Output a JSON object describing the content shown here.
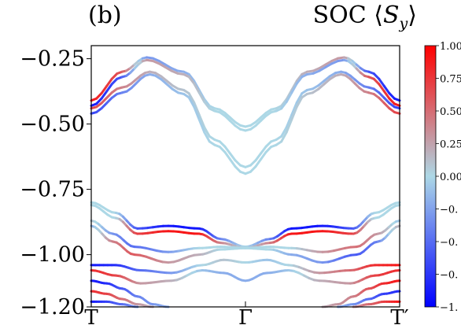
{
  "panel_label": "(b)",
  "title": {
    "prefix": "SOC",
    "open": "⟨",
    "symbol": "S",
    "sub": "y",
    "close": "⟩"
  },
  "colors": {
    "negative": "#0000ff",
    "zero": "#add8e6",
    "positive": "#ff0000"
  },
  "chart_data": {
    "type": "line",
    "title": "SOC ⟨Sy⟩",
    "xlabel": "",
    "ylabel": "",
    "x_ticks": [
      {
        "label": "T",
        "pos": 0.0
      },
      {
        "label": "Γ",
        "pos": 0.5
      },
      {
        "label": "T′",
        "pos": 1.0
      }
    ],
    "xlim": [
      0,
      1
    ],
    "ylim": [
      -1.2,
      -0.2
    ],
    "y_ticks": [
      -0.25,
      -0.5,
      -0.75,
      -1.0,
      -1.2
    ],
    "y_tick_labels": [
      "−0.25",
      "−0.50",
      "−0.75",
      "−1.00",
      "−1.20"
    ],
    "grid": false,
    "colorbar": {
      "cmap": "bwr (blue-lightblue-red)",
      "range": [
        -1.0,
        1.0
      ],
      "ticks": [
        1.0,
        0.75,
        0.5,
        0.25,
        0.0,
        -0.25,
        -0.5,
        -0.75,
        -1.0
      ],
      "tick_labels": [
        "1.00",
        "0.75",
        "0.50",
        "0.25",
        "0.00",
        "−0.",
        "−0.",
        "−0.",
        "−1."
      ]
    },
    "series": [
      {
        "x": [
          0,
          0.1,
          0.18,
          0.3,
          0.4,
          0.5,
          0.6,
          0.7,
          0.82,
          0.9,
          1.0
        ],
        "y": [
          -0.41,
          -0.3,
          -0.245,
          -0.3,
          -0.44,
          -0.51,
          -0.44,
          -0.3,
          -0.245,
          -0.3,
          -0.41
        ],
        "spin": [
          0.9,
          0.6,
          -0.3,
          -0.2,
          0.0,
          0.0,
          0.0,
          0.2,
          0.3,
          -0.6,
          -0.9
        ]
      },
      {
        "x": [
          0,
          0.1,
          0.18,
          0.3,
          0.4,
          0.5,
          0.6,
          0.7,
          0.82,
          0.9,
          1.0
        ],
        "y": [
          -0.43,
          -0.32,
          -0.255,
          -0.31,
          -0.45,
          -0.525,
          -0.45,
          -0.31,
          -0.255,
          -0.32,
          -0.43
        ],
        "spin": [
          -0.9,
          -0.6,
          0.3,
          0.2,
          0.0,
          0.0,
          0.0,
          -0.2,
          -0.3,
          0.6,
          0.9
        ]
      },
      {
        "x": [
          0,
          0.1,
          0.19,
          0.3,
          0.4,
          0.5,
          0.6,
          0.7,
          0.81,
          0.9,
          1.0
        ],
        "y": [
          -0.44,
          -0.36,
          -0.3,
          -0.37,
          -0.56,
          -0.665,
          -0.56,
          -0.37,
          -0.3,
          -0.36,
          -0.44
        ],
        "spin": [
          0.7,
          0.4,
          0.2,
          0.1,
          0.0,
          0.0,
          0.0,
          -0.1,
          -0.2,
          -0.4,
          -0.7
        ]
      },
      {
        "x": [
          0,
          0.1,
          0.19,
          0.3,
          0.4,
          0.5,
          0.6,
          0.7,
          0.81,
          0.9,
          1.0
        ],
        "y": [
          -0.46,
          -0.38,
          -0.31,
          -0.385,
          -0.58,
          -0.69,
          -0.58,
          -0.385,
          -0.31,
          -0.38,
          -0.46
        ],
        "spin": [
          -0.7,
          -0.4,
          -0.2,
          -0.1,
          0.0,
          0.0,
          0.0,
          0.1,
          0.2,
          0.4,
          0.7
        ]
      },
      {
        "x": [
          0,
          0.08,
          0.15,
          0.25,
          0.35,
          0.42,
          0.5,
          0.58,
          0.65,
          0.75,
          0.85,
          0.92,
          1.0
        ],
        "y": [
          -0.8,
          -0.84,
          -0.9,
          -0.89,
          -0.9,
          -0.94,
          -0.97,
          -0.94,
          -0.9,
          -0.89,
          -0.9,
          -0.84,
          -0.8
        ],
        "spin": [
          0.0,
          0.0,
          -0.6,
          -0.9,
          -0.9,
          -0.4,
          0.0,
          -0.4,
          -0.9,
          -0.9,
          -0.6,
          0.0,
          0.0
        ]
      },
      {
        "x": [
          0,
          0.08,
          0.15,
          0.25,
          0.35,
          0.42,
          0.5,
          0.58,
          0.65,
          0.75,
          0.85,
          0.92,
          1.0
        ],
        "y": [
          -0.81,
          -0.86,
          -0.92,
          -0.91,
          -0.92,
          -0.955,
          -0.975,
          -0.955,
          -0.92,
          -0.91,
          -0.92,
          -0.86,
          -0.81
        ],
        "spin": [
          0.0,
          0.0,
          0.7,
          0.9,
          0.9,
          0.4,
          0.0,
          0.4,
          0.9,
          0.9,
          0.7,
          0.0,
          0.0
        ]
      },
      {
        "x": [
          0,
          0.07,
          0.14,
          0.25,
          0.35,
          0.42,
          0.5,
          0.58,
          0.65,
          0.75,
          0.86,
          0.93,
          1.0
        ],
        "y": [
          -0.87,
          -0.92,
          -0.97,
          -0.99,
          -0.975,
          -0.97,
          -0.975,
          -0.97,
          -0.975,
          -0.99,
          -0.97,
          -0.92,
          -0.87
        ],
        "spin": [
          0.1,
          -0.3,
          -0.5,
          -0.3,
          0.0,
          0.0,
          0.0,
          0.0,
          0.0,
          0.3,
          0.5,
          0.3,
          -0.1
        ]
      },
      {
        "x": [
          0,
          0.07,
          0.14,
          0.25,
          0.35,
          0.42,
          0.5,
          0.58,
          0.65,
          0.75,
          0.86,
          0.93,
          1.0
        ],
        "y": [
          -0.89,
          -0.95,
          -1.0,
          -1.03,
          -1.0,
          -0.98,
          -0.975,
          -0.98,
          -1.0,
          -1.03,
          -1.0,
          -0.95,
          -0.89
        ],
        "spin": [
          -0.2,
          0.4,
          0.6,
          0.3,
          0.2,
          0.0,
          0.0,
          0.0,
          -0.2,
          -0.3,
          -0.6,
          -0.4,
          0.2
        ]
      },
      {
        "x": [
          0,
          0.08,
          0.16,
          0.26,
          0.36,
          0.43,
          0.5,
          0.57,
          0.64,
          0.74,
          0.84,
          0.92,
          1.0
        ],
        "y": [
          -1.04,
          -1.04,
          -1.06,
          -1.07,
          -1.04,
          -1.02,
          -1.03,
          -1.02,
          -1.04,
          -1.07,
          -1.06,
          -1.04,
          -1.04
        ],
        "spin": [
          -0.9,
          -0.8,
          -0.5,
          -0.3,
          0.0,
          0.1,
          0.0,
          -0.1,
          0.0,
          0.3,
          0.5,
          0.8,
          0.9
        ]
      },
      {
        "x": [
          0,
          0.08,
          0.16,
          0.26,
          0.36,
          0.43,
          0.5,
          0.57,
          0.64,
          0.74,
          0.84,
          0.92,
          1.0
        ],
        "y": [
          -1.06,
          -1.08,
          -1.11,
          -1.1,
          -1.06,
          -1.07,
          -1.1,
          -1.07,
          -1.06,
          -1.1,
          -1.11,
          -1.08,
          -1.06
        ],
        "spin": [
          0.8,
          0.7,
          0.3,
          0.2,
          -0.1,
          -0.2,
          -0.2,
          -0.2,
          -0.1,
          0.2,
          0.3,
          0.7,
          0.8
        ]
      },
      {
        "x": [
          0,
          0.05,
          0.1,
          0.15,
          0.2,
          0.25
        ],
        "y": [
          -1.1,
          -1.11,
          -1.13,
          -1.16,
          -1.19,
          -1.2
        ],
        "spin": [
          -0.9,
          -0.8,
          -0.6,
          -0.4,
          -0.3,
          -0.2
        ]
      },
      {
        "x": [
          0,
          0.05,
          0.1,
          0.15,
          0.2
        ],
        "y": [
          -1.14,
          -1.15,
          -1.17,
          -1.19,
          -1.2
        ],
        "spin": [
          0.8,
          0.7,
          0.5,
          0.3,
          0.2
        ]
      },
      {
        "x": [
          0,
          0.05,
          0.1,
          0.15
        ],
        "y": [
          -1.18,
          -1.18,
          -1.19,
          -1.2
        ],
        "spin": [
          -0.9,
          -0.7,
          -0.5,
          -0.3
        ]
      },
      {
        "x": [
          0.75,
          0.8,
          0.85,
          0.9,
          0.95,
          1.0
        ],
        "y": [
          -1.2,
          -1.19,
          -1.16,
          -1.13,
          -1.11,
          -1.1
        ],
        "spin": [
          0.2,
          0.3,
          0.4,
          0.6,
          0.8,
          0.9
        ]
      },
      {
        "x": [
          0.8,
          0.85,
          0.9,
          0.95,
          1.0
        ],
        "y": [
          -1.2,
          -1.19,
          -1.17,
          -1.15,
          -1.14
        ],
        "spin": [
          -0.2,
          -0.3,
          -0.5,
          -0.7,
          -0.8
        ]
      },
      {
        "x": [
          0.85,
          0.9,
          0.95,
          1.0
        ],
        "y": [
          -1.2,
          -1.19,
          -1.18,
          -1.18
        ],
        "spin": [
          0.3,
          0.5,
          0.7,
          0.9
        ]
      }
    ]
  }
}
